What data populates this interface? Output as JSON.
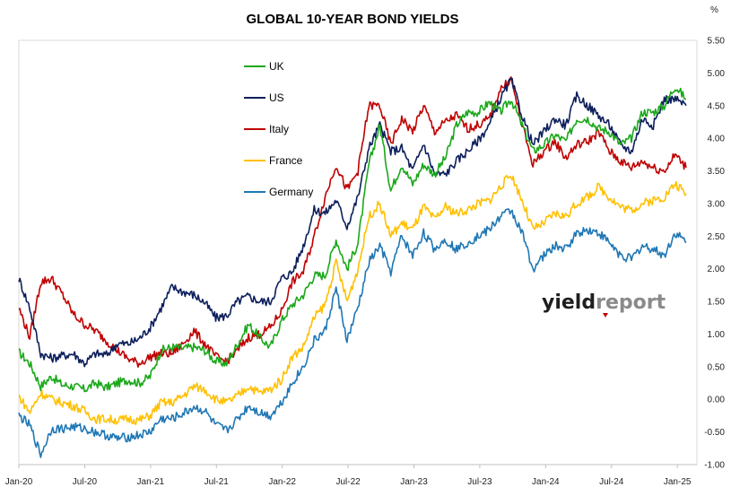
{
  "chart_data": {
    "type": "line",
    "title": "GLOBAL 10-YEAR BOND YIELDS",
    "unit_label": "%",
    "ylim": [
      -1.0,
      5.5
    ],
    "y_ticks": [
      -1.0,
      -0.5,
      0.0,
      0.5,
      1.0,
      1.5,
      2.0,
      2.5,
      3.0,
      3.5,
      4.0,
      4.5,
      5.0,
      5.5
    ],
    "y_tick_labels": [
      "-1.00",
      "-0.50",
      "0.00",
      "0.50",
      "1.00",
      "1.50",
      "2.00",
      "2.50",
      "3.00",
      "3.50",
      "4.00",
      "4.50",
      "5.00",
      "5.50"
    ],
    "x_tick_labels": [
      "Jan-20",
      "Jul-20",
      "Jan-21",
      "Jul-21",
      "Jan-22",
      "Jul-22",
      "Jan-23",
      "Jul-23",
      "Jan-24",
      "Jul-24",
      "Jan-25"
    ],
    "x_range": [
      "2020-01",
      "2025-02"
    ],
    "axis_position": "right",
    "grid": false,
    "legend_position": "top-left",
    "series": [
      {
        "name": "UK",
        "color": "#1aa81a",
        "x": [
          "2020-01",
          "2020-02",
          "2020-03",
          "2020-04",
          "2020-05",
          "2020-06",
          "2020-07",
          "2020-08",
          "2020-09",
          "2020-10",
          "2020-11",
          "2020-12",
          "2021-01",
          "2021-02",
          "2021-03",
          "2021-04",
          "2021-05",
          "2021-06",
          "2021-07",
          "2021-08",
          "2021-09",
          "2021-10",
          "2021-11",
          "2021-12",
          "2022-01",
          "2022-02",
          "2022-03",
          "2022-04",
          "2022-05",
          "2022-06",
          "2022-07",
          "2022-08",
          "2022-09",
          "2022-10",
          "2022-11",
          "2022-12",
          "2023-01",
          "2023-02",
          "2023-03",
          "2023-04",
          "2023-05",
          "2023-06",
          "2023-07",
          "2023-08",
          "2023-09",
          "2023-10",
          "2023-11",
          "2023-12",
          "2024-01",
          "2024-02",
          "2024-03",
          "2024-04",
          "2024-05",
          "2024-06",
          "2024-07",
          "2024-08",
          "2024-09",
          "2024-10",
          "2024-11",
          "2024-12",
          "2025-01",
          "2025-02"
        ],
        "values": [
          0.72,
          0.55,
          0.2,
          0.35,
          0.22,
          0.2,
          0.15,
          0.25,
          0.18,
          0.25,
          0.3,
          0.25,
          0.35,
          0.75,
          0.8,
          0.78,
          0.8,
          0.75,
          0.58,
          0.55,
          0.85,
          1.15,
          0.95,
          0.8,
          1.2,
          1.45,
          1.6,
          1.9,
          1.9,
          2.45,
          2.0,
          2.4,
          3.6,
          4.2,
          3.2,
          3.6,
          3.3,
          3.6,
          3.45,
          3.7,
          4.2,
          4.4,
          4.4,
          4.55,
          4.4,
          4.6,
          4.2,
          3.8,
          3.9,
          4.05,
          3.95,
          4.3,
          4.3,
          4.15,
          4.1,
          3.9,
          4.0,
          4.4,
          4.4,
          4.5,
          4.8,
          4.6
        ]
      },
      {
        "name": "US",
        "color": "#0d1f5c",
        "x": [
          "2020-01",
          "2020-02",
          "2020-03",
          "2020-04",
          "2020-05",
          "2020-06",
          "2020-07",
          "2020-08",
          "2020-09",
          "2020-10",
          "2020-11",
          "2020-12",
          "2021-01",
          "2021-02",
          "2021-03",
          "2021-04",
          "2021-05",
          "2021-06",
          "2021-07",
          "2021-08",
          "2021-09",
          "2021-10",
          "2021-11",
          "2021-12",
          "2022-01",
          "2022-02",
          "2022-03",
          "2022-04",
          "2022-05",
          "2022-06",
          "2022-07",
          "2022-08",
          "2022-09",
          "2022-10",
          "2022-11",
          "2022-12",
          "2023-01",
          "2023-02",
          "2023-03",
          "2023-04",
          "2023-05",
          "2023-06",
          "2023-07",
          "2023-08",
          "2023-09",
          "2023-10",
          "2023-11",
          "2023-12",
          "2024-01",
          "2024-02",
          "2024-03",
          "2024-04",
          "2024-05",
          "2024-06",
          "2024-07",
          "2024-08",
          "2024-09",
          "2024-10",
          "2024-11",
          "2024-12",
          "2025-01",
          "2025-02"
        ],
        "values": [
          1.85,
          1.4,
          0.7,
          0.63,
          0.67,
          0.7,
          0.55,
          0.7,
          0.68,
          0.85,
          0.85,
          0.93,
          1.1,
          1.4,
          1.72,
          1.65,
          1.6,
          1.48,
          1.25,
          1.28,
          1.5,
          1.58,
          1.5,
          1.5,
          1.85,
          1.95,
          2.35,
          2.9,
          2.85,
          3.05,
          2.65,
          3.1,
          3.85,
          4.2,
          3.8,
          3.85,
          3.5,
          3.92,
          3.45,
          3.45,
          3.65,
          3.8,
          3.97,
          4.2,
          4.6,
          4.9,
          4.35,
          3.9,
          4.1,
          4.3,
          4.2,
          4.65,
          4.5,
          4.35,
          4.2,
          3.9,
          3.8,
          4.3,
          4.2,
          4.6,
          4.6,
          4.5
        ]
      },
      {
        "name": "Italy",
        "color": "#c00000",
        "x": [
          "2020-01",
          "2020-02",
          "2020-03",
          "2020-04",
          "2020-05",
          "2020-06",
          "2020-07",
          "2020-08",
          "2020-09",
          "2020-10",
          "2020-11",
          "2020-12",
          "2021-01",
          "2021-02",
          "2021-03",
          "2021-04",
          "2021-05",
          "2021-06",
          "2021-07",
          "2021-08",
          "2021-09",
          "2021-10",
          "2021-11",
          "2021-12",
          "2022-01",
          "2022-02",
          "2022-03",
          "2022-04",
          "2022-05",
          "2022-06",
          "2022-07",
          "2022-08",
          "2022-09",
          "2022-10",
          "2022-11",
          "2022-12",
          "2023-01",
          "2023-02",
          "2023-03",
          "2023-04",
          "2023-05",
          "2023-06",
          "2023-07",
          "2023-08",
          "2023-09",
          "2023-10",
          "2023-11",
          "2023-12",
          "2024-01",
          "2024-02",
          "2024-03",
          "2024-04",
          "2024-05",
          "2024-06",
          "2024-07",
          "2024-08",
          "2024-09",
          "2024-10",
          "2024-11",
          "2024-12",
          "2025-01",
          "2025-02"
        ],
        "values": [
          1.4,
          0.95,
          1.8,
          1.85,
          1.6,
          1.3,
          1.15,
          1.05,
          0.9,
          0.75,
          0.62,
          0.55,
          0.65,
          0.7,
          0.7,
          0.85,
          1.05,
          0.85,
          0.65,
          0.58,
          0.75,
          0.95,
          1.0,
          1.1,
          1.35,
          1.8,
          1.95,
          2.5,
          3.1,
          3.6,
          3.2,
          3.5,
          4.5,
          4.5,
          3.9,
          4.3,
          4.1,
          4.5,
          4.1,
          4.25,
          4.35,
          4.15,
          4.2,
          4.3,
          4.75,
          4.9,
          4.2,
          3.6,
          3.8,
          3.95,
          3.7,
          3.9,
          3.95,
          4.1,
          3.8,
          3.65,
          3.55,
          3.65,
          3.55,
          3.5,
          3.75,
          3.55
        ]
      },
      {
        "name": "France",
        "color": "#ffc000",
        "x": [
          "2020-01",
          "2020-02",
          "2020-03",
          "2020-04",
          "2020-05",
          "2020-06",
          "2020-07",
          "2020-08",
          "2020-09",
          "2020-10",
          "2020-11",
          "2020-12",
          "2021-01",
          "2021-02",
          "2021-03",
          "2021-04",
          "2021-05",
          "2021-06",
          "2021-07",
          "2021-08",
          "2021-09",
          "2021-10",
          "2021-11",
          "2021-12",
          "2022-01",
          "2022-02",
          "2022-03",
          "2022-04",
          "2022-05",
          "2022-06",
          "2022-07",
          "2022-08",
          "2022-09",
          "2022-10",
          "2022-11",
          "2022-12",
          "2023-01",
          "2023-02",
          "2023-03",
          "2023-04",
          "2023-05",
          "2023-06",
          "2023-07",
          "2023-08",
          "2023-09",
          "2023-10",
          "2023-11",
          "2023-12",
          "2024-01",
          "2024-02",
          "2024-03",
          "2024-04",
          "2024-05",
          "2024-06",
          "2024-07",
          "2024-08",
          "2024-09",
          "2024-10",
          "2024-11",
          "2024-12",
          "2025-01",
          "2025-02"
        ],
        "values": [
          0.05,
          -0.2,
          0.1,
          0.0,
          -0.05,
          -0.1,
          -0.18,
          -0.3,
          -0.3,
          -0.32,
          -0.3,
          -0.32,
          -0.25,
          -0.05,
          -0.05,
          0.05,
          0.2,
          0.15,
          0.0,
          -0.05,
          0.05,
          0.2,
          0.1,
          0.15,
          0.3,
          0.65,
          0.8,
          1.25,
          1.45,
          2.1,
          1.5,
          2.0,
          2.8,
          3.0,
          2.5,
          2.7,
          2.6,
          2.95,
          2.75,
          2.95,
          2.85,
          2.9,
          3.0,
          3.05,
          3.25,
          3.45,
          3.05,
          2.6,
          2.7,
          2.85,
          2.8,
          3.0,
          3.1,
          3.25,
          3.1,
          2.95,
          2.9,
          3.0,
          3.05,
          3.1,
          3.3,
          3.15
        ]
      },
      {
        "name": "Germany",
        "color": "#1f77b4",
        "x": [
          "2020-01",
          "2020-02",
          "2020-03",
          "2020-04",
          "2020-05",
          "2020-06",
          "2020-07",
          "2020-08",
          "2020-09",
          "2020-10",
          "2020-11",
          "2020-12",
          "2021-01",
          "2021-02",
          "2021-03",
          "2021-04",
          "2021-05",
          "2021-06",
          "2021-07",
          "2021-08",
          "2021-09",
          "2021-10",
          "2021-11",
          "2021-12",
          "2022-01",
          "2022-02",
          "2022-03",
          "2022-04",
          "2022-05",
          "2022-06",
          "2022-07",
          "2022-08",
          "2022-09",
          "2022-10",
          "2022-11",
          "2022-12",
          "2023-01",
          "2023-02",
          "2023-03",
          "2023-04",
          "2023-05",
          "2023-06",
          "2023-07",
          "2023-08",
          "2023-09",
          "2023-10",
          "2023-11",
          "2023-12",
          "2024-01",
          "2024-02",
          "2024-03",
          "2024-04",
          "2024-05",
          "2024-06",
          "2024-07",
          "2024-08",
          "2024-09",
          "2024-10",
          "2024-11",
          "2024-12",
          "2025-01",
          "2025-02"
        ],
        "values": [
          -0.25,
          -0.4,
          -0.85,
          -0.45,
          -0.45,
          -0.42,
          -0.45,
          -0.5,
          -0.55,
          -0.6,
          -0.58,
          -0.55,
          -0.5,
          -0.3,
          -0.3,
          -0.22,
          -0.12,
          -0.18,
          -0.4,
          -0.48,
          -0.3,
          -0.1,
          -0.2,
          -0.25,
          -0.05,
          0.25,
          0.5,
          0.9,
          1.05,
          1.7,
          0.9,
          1.4,
          2.1,
          2.35,
          1.95,
          2.5,
          2.2,
          2.55,
          2.3,
          2.45,
          2.3,
          2.4,
          2.5,
          2.6,
          2.8,
          2.9,
          2.55,
          2.0,
          2.2,
          2.35,
          2.3,
          2.55,
          2.6,
          2.55,
          2.4,
          2.2,
          2.15,
          2.35,
          2.3,
          2.2,
          2.55,
          2.4
        ]
      }
    ]
  },
  "watermark": {
    "brand_part1": "yield",
    "brand_part2": "report",
    "accent_color": "#c00000"
  }
}
